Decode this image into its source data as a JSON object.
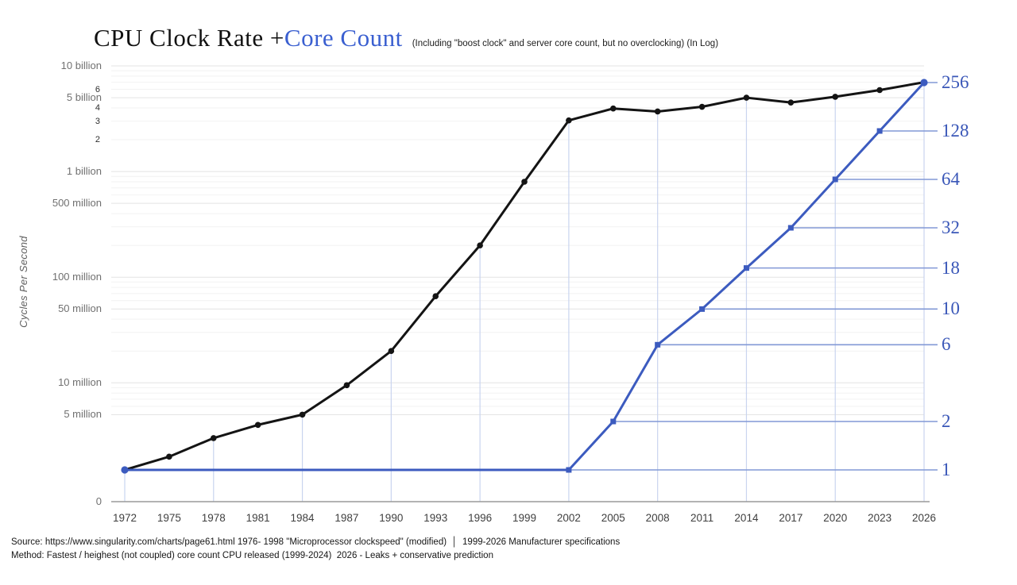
{
  "title": {
    "main_black": "CPU Clock Rate + ",
    "main_blue": "Core Count",
    "subtitle": "(Including \"boost clock\" and server core count, but no overclocking)  (In Log)"
  },
  "axes": {
    "left_axis_title": "Cycles Per Second",
    "left_ticks": [
      {
        "label": "10 billion",
        "value_hz": 10000000000.0,
        "size": "major"
      },
      {
        "label": "6",
        "value_hz": 6000000000.0,
        "size": "small"
      },
      {
        "label": "5 billion",
        "value_hz": 5000000000.0,
        "size": "major"
      },
      {
        "label": "4",
        "value_hz": 4000000000.0,
        "size": "small"
      },
      {
        "label": "3",
        "value_hz": 3000000000.0,
        "size": "small"
      },
      {
        "label": "2",
        "value_hz": 2000000000.0,
        "size": "small"
      },
      {
        "label": "1 billion",
        "value_hz": 1000000000.0,
        "size": "major"
      },
      {
        "label": "500 million",
        "value_hz": 500000000.0,
        "size": "major"
      },
      {
        "label": "100 million",
        "value_hz": 100000000.0,
        "size": "major"
      },
      {
        "label": "50 million",
        "value_hz": 50000000.0,
        "size": "major"
      },
      {
        "label": "10 million",
        "value_hz": 10000000.0,
        "size": "major"
      },
      {
        "label": "5 million",
        "value_hz": 5000000.0,
        "size": "major"
      },
      {
        "label": "0",
        "value_hz": null,
        "size": "major"
      }
    ],
    "x_ticks": [
      1972,
      1975,
      1978,
      1981,
      1984,
      1987,
      1990,
      1993,
      1996,
      1999,
      2002,
      2005,
      2008,
      2011,
      2014,
      2017,
      2020,
      2023,
      2026
    ]
  },
  "chart_data": {
    "type": "line",
    "title": "CPU Clock Rate + Core Count",
    "subtitle": "(Including \"boost clock\" and server core count, but no overclocking) (In Log)",
    "ylabel_left": "Cycles Per Second",
    "left_axis_scale": "log10",
    "right_axis_scale": "log2",
    "left_axis_range_hz": [
      750000,
      10000000000.0
    ],
    "right_axis_range_cores": [
      1,
      256
    ],
    "grid": true,
    "legend_position": "none",
    "x": [
      1972,
      1975,
      1978,
      1981,
      1984,
      1987,
      1990,
      1993,
      1996,
      1999,
      2002,
      2005,
      2008,
      2011,
      2014,
      2017,
      2020,
      2023,
      2026
    ],
    "series": [
      {
        "name": "CPU Clock Rate",
        "axis": "left",
        "unit": "GHz",
        "values": [
          0.0015,
          0.002,
          0.003,
          0.004,
          0.005,
          0.0095,
          0.02,
          0.066,
          0.2,
          0.8,
          3.05,
          3.95,
          3.7,
          4.1,
          5.0,
          4.5,
          5.1,
          5.9,
          7.0
        ]
      },
      {
        "name": "Core Count",
        "axis": "right",
        "unit": "cores",
        "values": [
          1,
          1,
          1,
          1,
          1,
          1,
          1,
          1,
          1,
          1,
          1,
          2,
          6,
          10,
          18,
          32,
          64,
          128,
          256
        ]
      }
    ],
    "right_leaders": [
      {
        "value": 1,
        "from_year": 2002
      },
      {
        "value": 2,
        "from_year": 2005
      },
      {
        "value": 6,
        "from_year": 2008
      },
      {
        "value": 10,
        "from_year": 2011
      },
      {
        "value": 18,
        "from_year": 2014
      },
      {
        "value": 32,
        "from_year": 2017
      },
      {
        "value": 64,
        "from_year": 2020
      },
      {
        "value": 128,
        "from_year": 2023
      },
      {
        "value": 256,
        "from_year": 2026
      }
    ],
    "dropline_years": [
      1972,
      1978,
      1984,
      1990,
      1996,
      2002,
      2008,
      2014,
      2020,
      2026
    ]
  },
  "footer": {
    "source_line": "Source: https://www.singularity.com/charts/page61.html 1976- 1998 \"Microprocessor clockspeed\" (modified)  │  1999-2026 Manufacturer specifications",
    "method_line": "Method: Fastest / heighest (not coupled) core count CPU released (1999-2024)  2026 - Leaks + conservative prediction"
  },
  "colors": {
    "clock_line": "#141414",
    "core_line": "#3c5bbf",
    "core_label": "#3a57b8",
    "title_blue": "#3a5fd0",
    "leader_line": "#8299d6",
    "dropline": "#c9d4ef",
    "grid_major": "#e3e3e3",
    "grid_minor": "#f2f2f2",
    "axis_line": "#9a9a9a"
  }
}
